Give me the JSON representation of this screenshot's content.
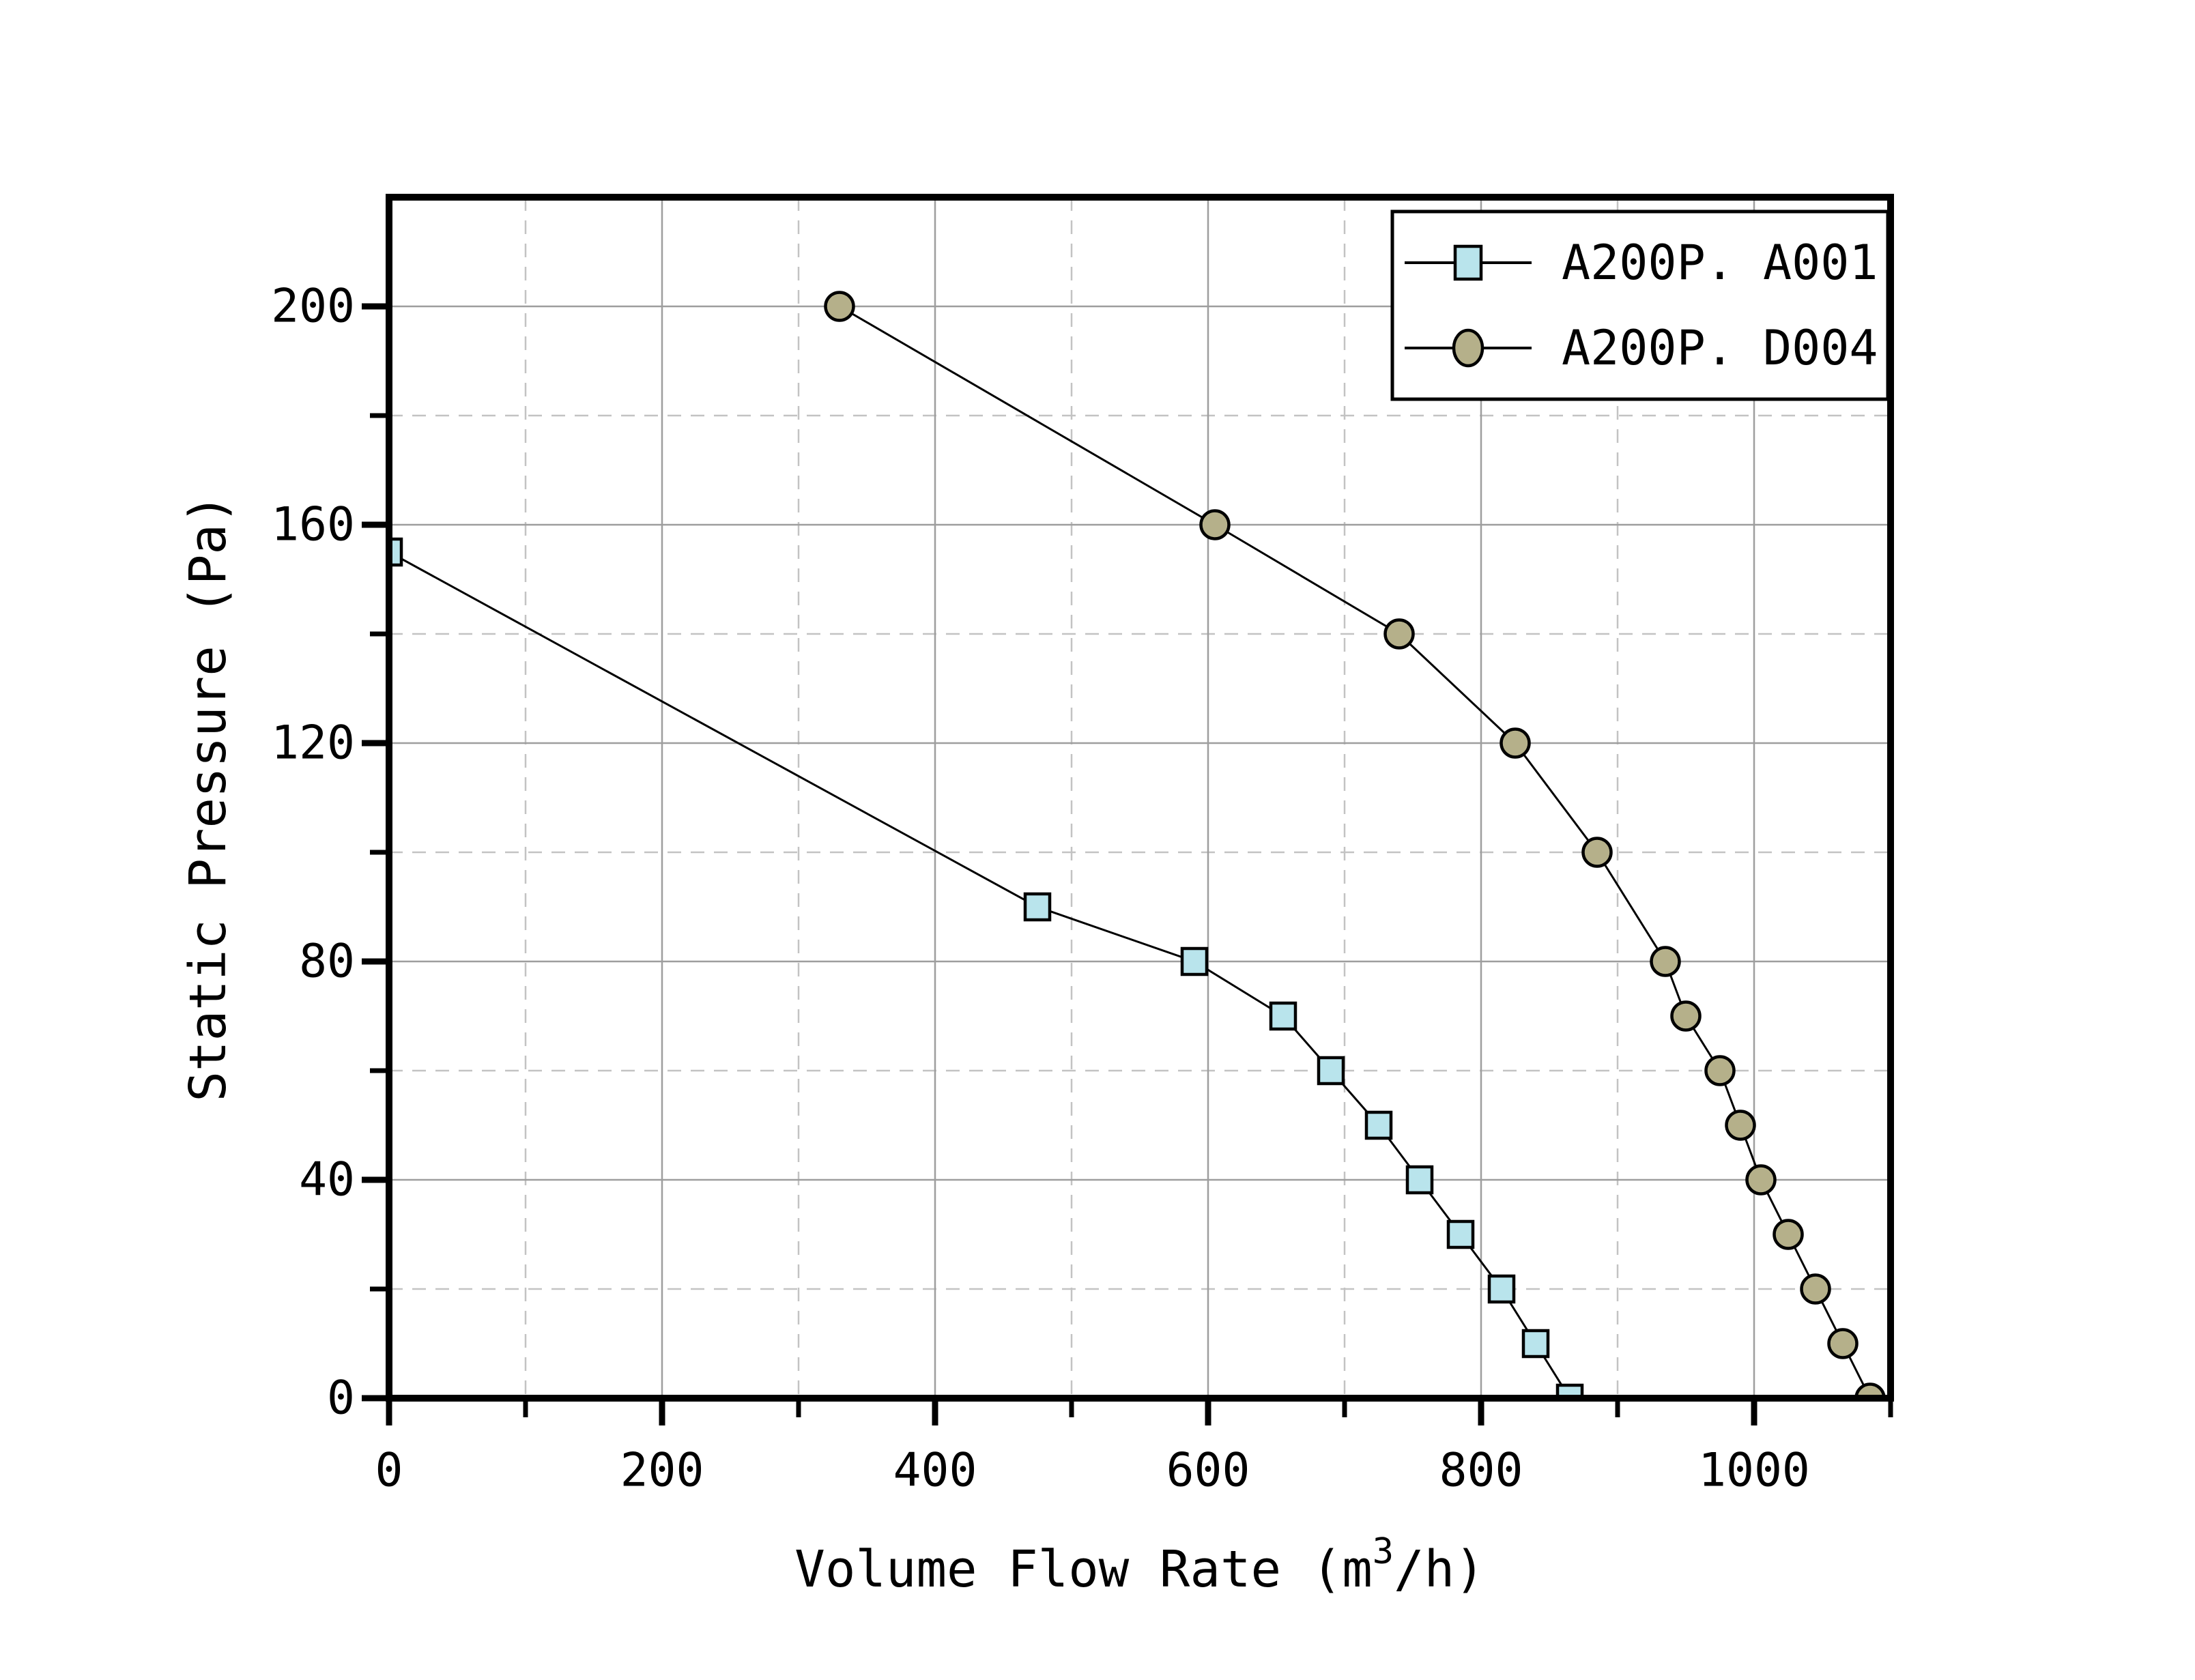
{
  "chart_data": {
    "type": "line",
    "title": "",
    "xlabel": "Volume Flow Rate (m3/h)",
    "xlabel_parts": {
      "prefix": "Volume Flow Rate (m",
      "sup": "3",
      "suffix": "/h)"
    },
    "ylabel": "Static Pressure (Pa)",
    "x_axis": {
      "min": 0,
      "max": 1100,
      "major_ticks": [
        0,
        200,
        400,
        600,
        800,
        1000
      ],
      "minor_ticks": [
        100,
        300,
        500,
        700,
        900,
        1100
      ],
      "tick_labels": [
        "0",
        "200",
        "400",
        "600",
        "800",
        "1000"
      ]
    },
    "y_axis": {
      "min": 0,
      "max": 220,
      "major_ticks": [
        0,
        40,
        80,
        120,
        160,
        200
      ],
      "minor_ticks": [
        20,
        60,
        100,
        140,
        180
      ],
      "tick_labels": [
        "0",
        "40",
        "80",
        "120",
        "160",
        "200"
      ]
    },
    "grid": {
      "major_color": "#9e9e9e",
      "minor_color": "#c3c3c3",
      "major_width": 2.5,
      "minor_width": 2.5,
      "minor_dash": "20 14",
      "major_on": true,
      "minor_on": true
    },
    "series": [
      {
        "name": "A200P. A001",
        "marker": "square",
        "marker_fill": "#b9e4ec",
        "line_color": "#000000",
        "points": [
          [
            0,
            155
          ],
          [
            475,
            90
          ],
          [
            590,
            80
          ],
          [
            655,
            70
          ],
          [
            690,
            60
          ],
          [
            725,
            50
          ],
          [
            755,
            40
          ],
          [
            785,
            30
          ],
          [
            815,
            20
          ],
          [
            840,
            10
          ],
          [
            865,
            0
          ]
        ]
      },
      {
        "name": "A200P. D004",
        "marker": "circle",
        "marker_fill": "#b5b08a",
        "line_color": "#000000",
        "points": [
          [
            330,
            200
          ],
          [
            605,
            160
          ],
          [
            740,
            140
          ],
          [
            825,
            120
          ],
          [
            885,
            100
          ],
          [
            935,
            80
          ],
          [
            950,
            70
          ],
          [
            975,
            60
          ],
          [
            990,
            50
          ],
          [
            1005,
            40
          ],
          [
            1025,
            30
          ],
          [
            1045,
            20
          ],
          [
            1065,
            10
          ],
          [
            1085,
            0
          ]
        ]
      }
    ],
    "legend": {
      "position": "top-right",
      "bg": "#ffffff",
      "border_color": "#000000",
      "entries": [
        "A200P. A001",
        "A200P. D004"
      ]
    }
  }
}
